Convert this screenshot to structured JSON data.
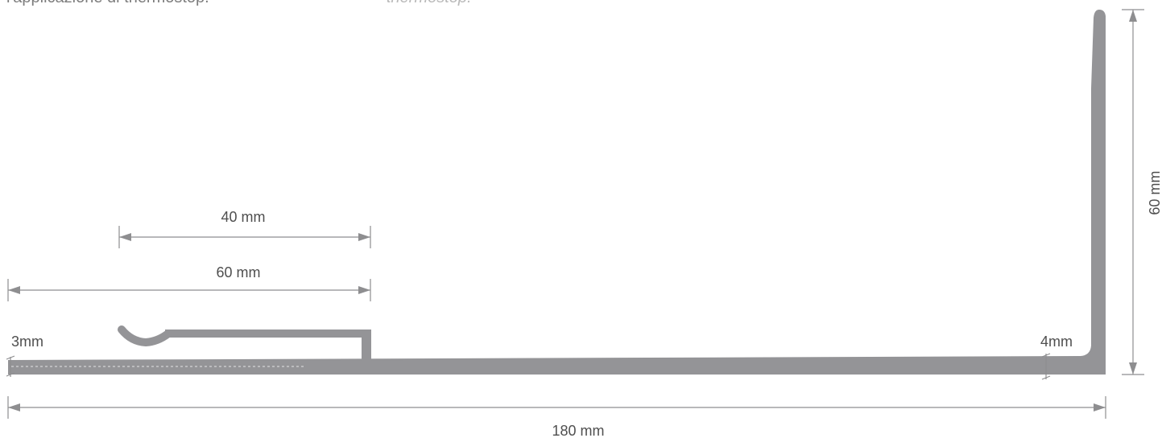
{
  "captions": {
    "italian": "l'applicazione di thermostop.",
    "english": "thermostop."
  },
  "dimensions": {
    "inner_flange_length": "40 mm",
    "outer_flange_length": "60 mm",
    "total_width": "180 mm",
    "height": "60 mm",
    "thickness_left": "3mm",
    "thickness_right": "4mm"
  },
  "colors": {
    "profile": "#949497",
    "dimension_line": "#8e8e90",
    "text": "#4f4f4f"
  }
}
